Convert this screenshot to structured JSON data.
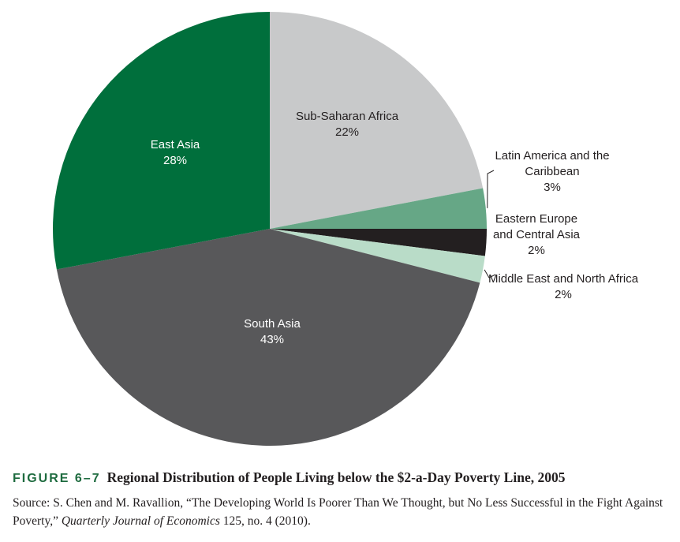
{
  "chart_data": {
    "type": "pie",
    "title": "Regional Distribution of People Living below the $2-a-Day Poverty Line, 2005",
    "slices": [
      {
        "name": "Sub-Saharan Africa",
        "lines": [
          "Sub-Saharan Africa"
        ],
        "value": 22,
        "value_label": "22%",
        "color": "#c8c9ca"
      },
      {
        "name": "Latin America and the Caribbean",
        "lines": [
          "Latin America and the",
          "Caribbean"
        ],
        "value": 3,
        "value_label": "3%",
        "color": "#66a786"
      },
      {
        "name": "Eastern Europe and Central Asia",
        "lines": [
          "Eastern Europe",
          "and Central Asia"
        ],
        "value": 2,
        "value_label": "2%",
        "color": "#231f20"
      },
      {
        "name": "Middle East and North Africa",
        "lines": [
          "Middle East and North Africa"
        ],
        "value": 2,
        "value_label": "2%",
        "color": "#b9dcc8"
      },
      {
        "name": "South Asia",
        "lines": [
          "South Asia"
        ],
        "value": 43,
        "value_label": "43%",
        "color": "#58585a"
      },
      {
        "name": "East Asia",
        "lines": [
          "East Asia"
        ],
        "value": 28,
        "value_label": "28%",
        "color": "#006f3c"
      }
    ]
  },
  "caption": {
    "figure_label": "FIGURE 6–7",
    "title": "Regional Distribution of People Living below the $2-a-Day Poverty Line, 2005",
    "source_pre": "Source: S. Chen and M. Ravallion, “The Developing World Is Poorer Than We Thought, but No Less Successful in the Fight Against Poverty,”",
    "source_journal": "Quarterly Journal of Economics",
    "source_post": "125, no. 4 (2010)."
  }
}
